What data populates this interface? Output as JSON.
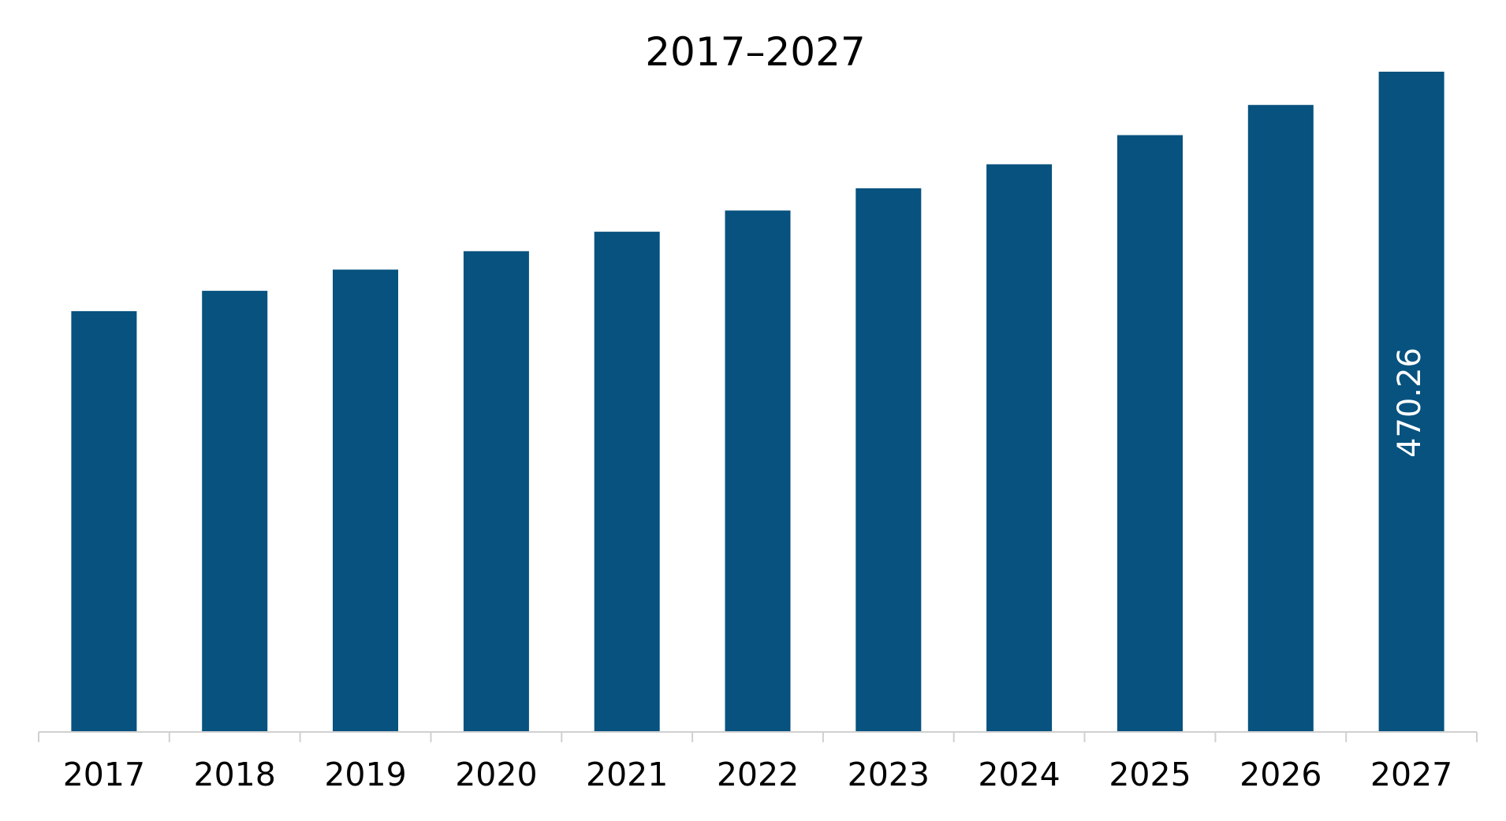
{
  "chart_data": {
    "type": "bar",
    "title": "2017–2027",
    "categories": [
      "2017",
      "2018",
      "2019",
      "2020",
      "2021",
      "2022",
      "2023",
      "2024",
      "2025",
      "2026",
      "2027"
    ],
    "values": [
      299.7,
      314.2,
      329.3,
      342.4,
      356.3,
      371.4,
      387.2,
      404.3,
      425.1,
      446.6,
      470.26
    ],
    "data_labels": [
      {
        "category": "2027",
        "text": "470.26"
      }
    ],
    "ylim": [
      0,
      470.26
    ],
    "colors": {
      "bar": "#07527f",
      "axis": "#d0d0d0",
      "text": "#000000",
      "data_label": "#ffffff"
    },
    "grid": false,
    "legend": "none",
    "xlabel": "",
    "ylabel": ""
  }
}
